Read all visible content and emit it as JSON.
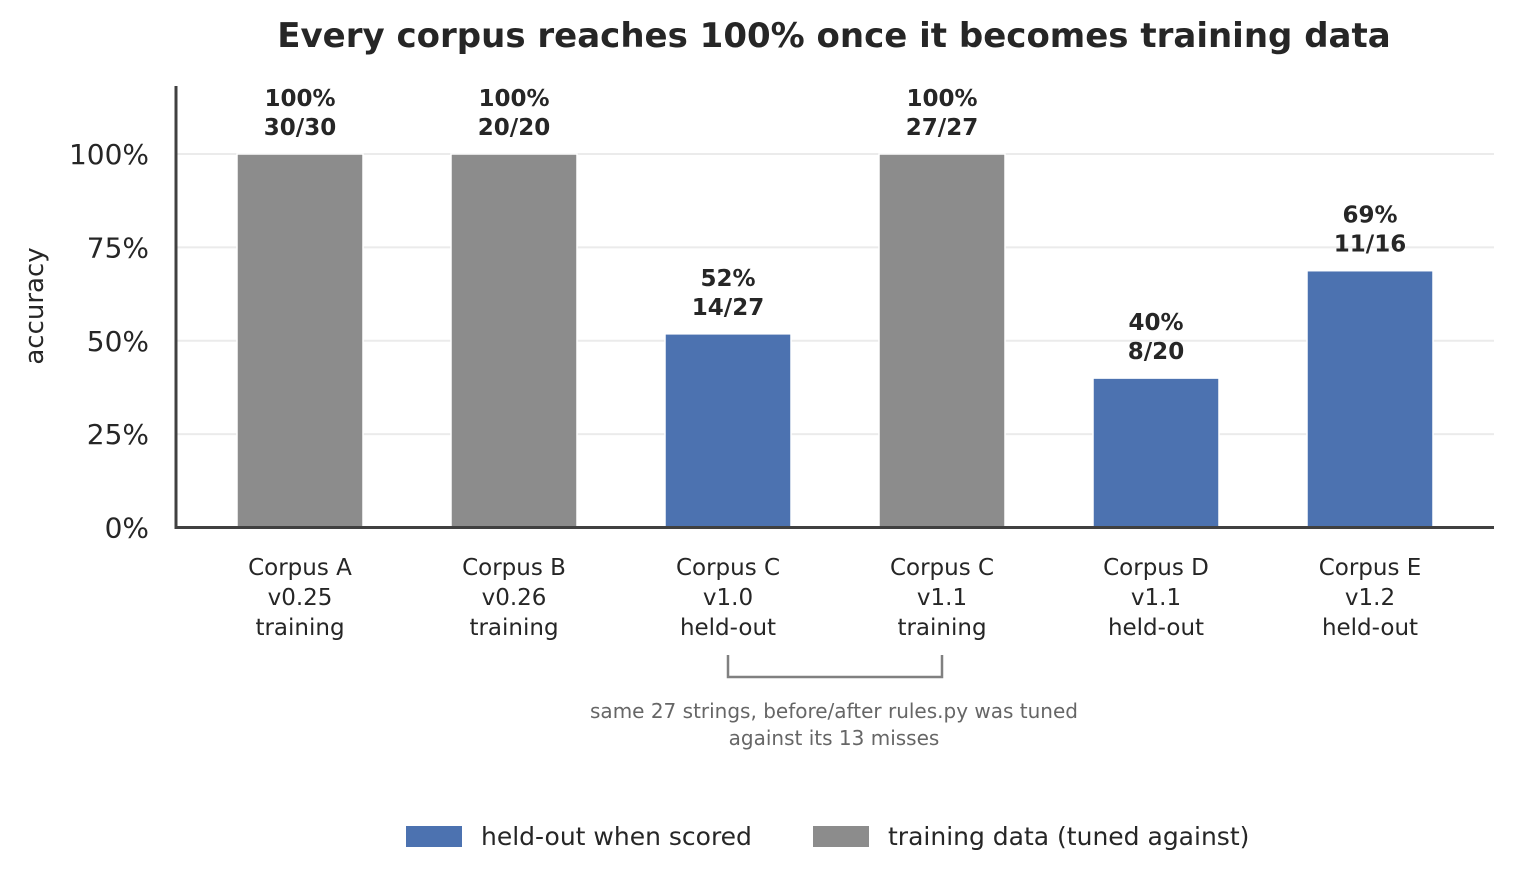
{
  "chart_data": {
    "type": "bar",
    "title": "Every corpus reaches 100% once it becomes training data",
    "ylabel": "accuracy",
    "xlabel": "",
    "ylim": [
      0,
      118
    ],
    "yticks": [
      "0%",
      "25%",
      "50%",
      "75%",
      "100%"
    ],
    "ytick_values": [
      0,
      25,
      50,
      75,
      100
    ],
    "grid": true,
    "categories": [
      [
        "Corpus A",
        "v0.25",
        "training"
      ],
      [
        "Corpus B",
        "v0.26",
        "training"
      ],
      [
        "Corpus C",
        "v1.0",
        "held-out"
      ],
      [
        "Corpus C",
        "v1.1",
        "training"
      ],
      [
        "Corpus D",
        "v1.1",
        "held-out"
      ],
      [
        "Corpus E",
        "v1.2",
        "held-out"
      ]
    ],
    "values": [
      100,
      100,
      51.85,
      100,
      40,
      68.75
    ],
    "groups": [
      "training",
      "training",
      "held-out",
      "training",
      "held-out",
      "held-out"
    ],
    "data_labels": [
      [
        "100%",
        "30/30"
      ],
      [
        "100%",
        "20/20"
      ],
      [
        "52%",
        "14/27"
      ],
      [
        "100%",
        "27/27"
      ],
      [
        "40%",
        "8/20"
      ],
      [
        "69%",
        "11/16"
      ]
    ],
    "colors": {
      "held-out": "#4c72b0",
      "training": "#8c8c8c"
    },
    "annotation": {
      "from_category": 2,
      "to_category": 3,
      "lines": [
        "same 27 strings, before/after rules.py was tuned",
        "against its 13 misses"
      ]
    },
    "legend": {
      "placement": "bottom-center",
      "entries": [
        {
          "label": "held-out when scored",
          "group": "held-out"
        },
        {
          "label": "training data (tuned against)",
          "group": "training"
        }
      ]
    }
  }
}
